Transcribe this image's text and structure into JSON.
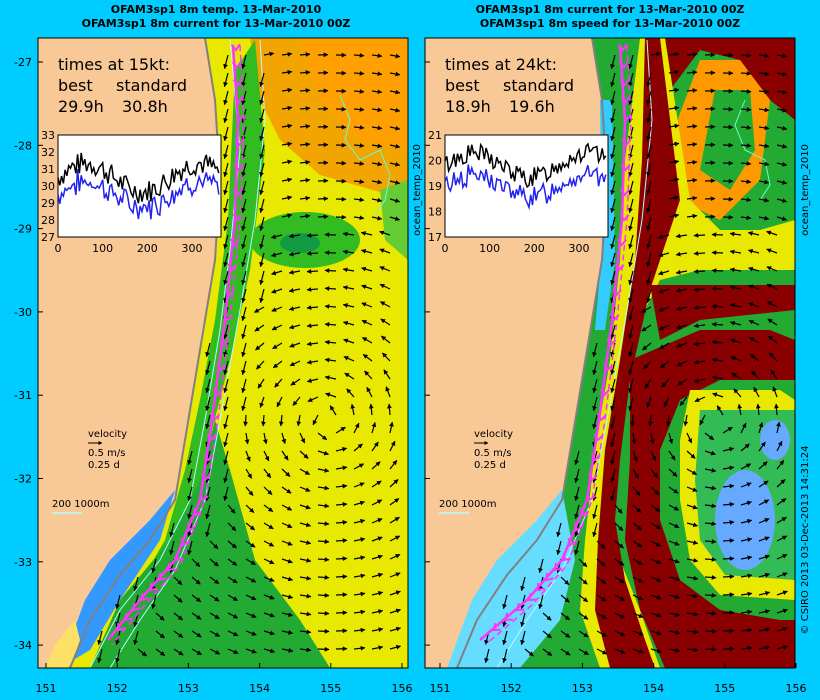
{
  "colors": {
    "page_bg": "#00ccff",
    "land": "#f8c896",
    "coast_gray": "#a0a0a0",
    "vector": "#000000",
    "track": "#ff33ff",
    "contour": "#b0ffff",
    "inset_best": "#000000",
    "inset_standard": "#2222ee"
  },
  "left_panel": {
    "title_line1": "OFAM3sp1  8m temp. 13-Mar-2010",
    "title_line2": "OFAM3sp1  8m current for 13-Mar-2010 00Z",
    "times_title": "times at 15kt:",
    "best_label": "best",
    "standard_label": "standard",
    "best_value": "29.9h",
    "standard_value": "30.8h",
    "inset_yticks": [
      "33",
      "32",
      "31",
      "30",
      "29",
      "28",
      "27"
    ],
    "inset_xticks": [
      "0",
      "100",
      "200",
      "300"
    ],
    "velocity_label": "velocity",
    "velocity_value": "0.5 m/s",
    "velocity_time": "0.25 d",
    "depth_label": "200  1000m",
    "right_label": "ocean_temp_2010"
  },
  "right_panel": {
    "title_line1": "OFAM3sp1  8m current for 13-Mar-2010 00Z",
    "title_line2": "OFAM3sp1  8m speed for 13-Mar-2010 00Z",
    "times_title": "times at 24kt:",
    "best_label": "best",
    "standard_label": "standard",
    "best_value": "18.9h",
    "standard_value": "19.6h",
    "inset_yticks": [
      "21",
      "20",
      "19",
      "18",
      "17"
    ],
    "inset_xticks": [
      "0",
      "100",
      "200",
      "300"
    ],
    "velocity_label": "velocity",
    "velocity_value": "0.5 m/s",
    "velocity_time": "0.25 d",
    "depth_label": "200  1000m",
    "right_label": "ocean_temp_2010",
    "credit": "© CSIRO 2013   03-Dec-2013 14:31:24"
  },
  "axes": {
    "lat_ticks": [
      "-27",
      "-28",
      "-29",
      "-30",
      "-31",
      "-32",
      "-33",
      "-34"
    ],
    "lon_ticks": [
      "151",
      "152",
      "153",
      "154",
      "155",
      "156"
    ]
  }
}
